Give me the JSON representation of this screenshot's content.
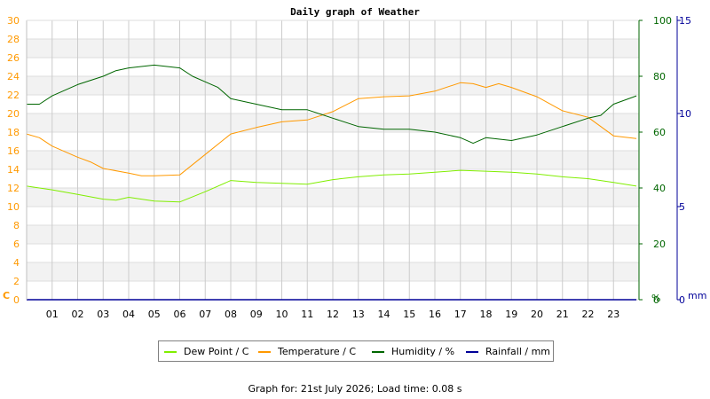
{
  "chart_data": {
    "type": "line",
    "title": "Daily graph of Weather",
    "x_range": [
      0,
      24
    ],
    "x_ticks": [
      "01",
      "02",
      "03",
      "04",
      "05",
      "06",
      "07",
      "08",
      "09",
      "10",
      "11",
      "12",
      "13",
      "14",
      "15",
      "16",
      "17",
      "18",
      "19",
      "20",
      "21",
      "22",
      "23"
    ],
    "grid": true,
    "axes": {
      "temp": {
        "label": "C",
        "range": [
          0,
          30
        ],
        "ticks": [
          0,
          2,
          4,
          6,
          8,
          10,
          12,
          14,
          16,
          18,
          20,
          22,
          24,
          26,
          28,
          30
        ],
        "color": "#ff9900"
      },
      "humidity": {
        "label": "%",
        "range": [
          0,
          100
        ],
        "ticks": [
          0,
          20,
          40,
          60,
          80,
          100
        ],
        "color": "#006600"
      },
      "rainfall": {
        "label": "mm",
        "range": [
          0,
          15
        ],
        "ticks": [
          0,
          5,
          10,
          15
        ],
        "color": "#000099"
      }
    },
    "series": [
      {
        "name": "Dew Point / C",
        "axis": "temp",
        "color": "#80ee00",
        "x": [
          0,
          1,
          2,
          3,
          3.5,
          4,
          5,
          6,
          7,
          8,
          9,
          10,
          11,
          12,
          13,
          14,
          15,
          16,
          17,
          18,
          19,
          20,
          21,
          22,
          23,
          23.9
        ],
        "values": [
          12.2,
          11.8,
          11.3,
          10.8,
          10.7,
          11.0,
          10.6,
          10.5,
          11.6,
          12.8,
          12.6,
          12.5,
          12.4,
          12.9,
          13.2,
          13.4,
          13.5,
          13.7,
          13.9,
          13.8,
          13.7,
          13.5,
          13.2,
          13.0,
          12.6,
          12.2
        ]
      },
      {
        "name": "Temperature / C",
        "axis": "temp",
        "color": "#ff9900",
        "x": [
          0,
          0.5,
          1,
          2,
          2.5,
          3,
          4,
          4.5,
          5,
          6,
          7,
          8,
          9,
          10,
          11,
          12,
          13,
          14,
          15,
          16,
          17,
          17.5,
          18,
          18.5,
          19,
          20,
          21,
          22,
          22.5,
          23,
          23.9
        ],
        "values": [
          17.8,
          17.4,
          16.5,
          15.3,
          14.8,
          14.1,
          13.6,
          13.3,
          13.3,
          13.4,
          15.6,
          17.8,
          18.5,
          19.1,
          19.3,
          20.2,
          21.6,
          21.8,
          21.9,
          22.4,
          23.3,
          23.2,
          22.8,
          23.2,
          22.8,
          21.8,
          20.3,
          19.6,
          18.6,
          17.6,
          17.3
        ]
      },
      {
        "name": "Humidity / %",
        "axis": "humidity",
        "color": "#006600",
        "x": [
          0,
          0.5,
          1,
          2,
          3,
          3.5,
          4,
          5,
          6,
          6.5,
          7,
          7.5,
          8,
          9,
          10,
          11,
          12,
          13,
          14,
          15,
          16,
          17,
          17.5,
          18,
          19,
          20,
          21,
          22,
          22.5,
          23,
          23.9
        ],
        "values": [
          70,
          70,
          73,
          77,
          80,
          82,
          83,
          84,
          83,
          80,
          78,
          76,
          72,
          70,
          68,
          68,
          65,
          62,
          61,
          61,
          60,
          58,
          56,
          58,
          57,
          59,
          62,
          65,
          66,
          70,
          73
        ]
      },
      {
        "name": "Rainfall / mm",
        "axis": "rainfall",
        "color": "#000099",
        "x": [
          0,
          23.9
        ],
        "values": [
          0,
          0
        ]
      }
    ],
    "footer": "Graph for: 21st July 2026; Load time: 0.08 s"
  }
}
